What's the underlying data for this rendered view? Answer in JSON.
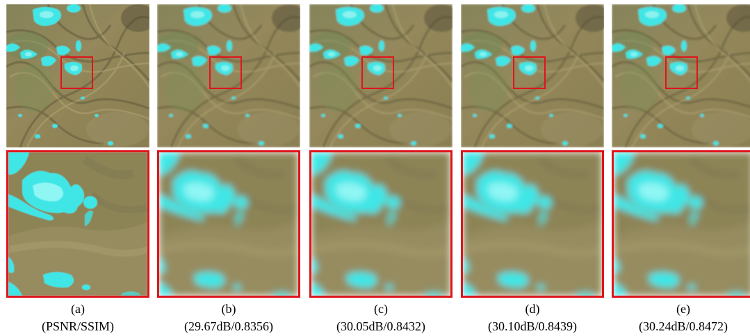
{
  "panels": [
    {
      "label": "(a)",
      "metric": "(PSNR/SSIM)"
    },
    {
      "label": "(b)",
      "metric": "(29.67dB/0.8356)"
    },
    {
      "label": "(c)",
      "metric": "(30.05dB/0.8432)"
    },
    {
      "label": "(d)",
      "metric": "(30.10dB/0.8439)"
    },
    {
      "label": "(e)",
      "metric": "(30.24dB/0.8472)"
    }
  ],
  "colors": {
    "terrain": "#8e8558",
    "terrain_dark": "#5f5a3a",
    "terrain_light": "#b2a77a",
    "snow": "#3fe6e6",
    "snow_core": "#8ff6f4",
    "highlight_box": "#e0141b"
  }
}
